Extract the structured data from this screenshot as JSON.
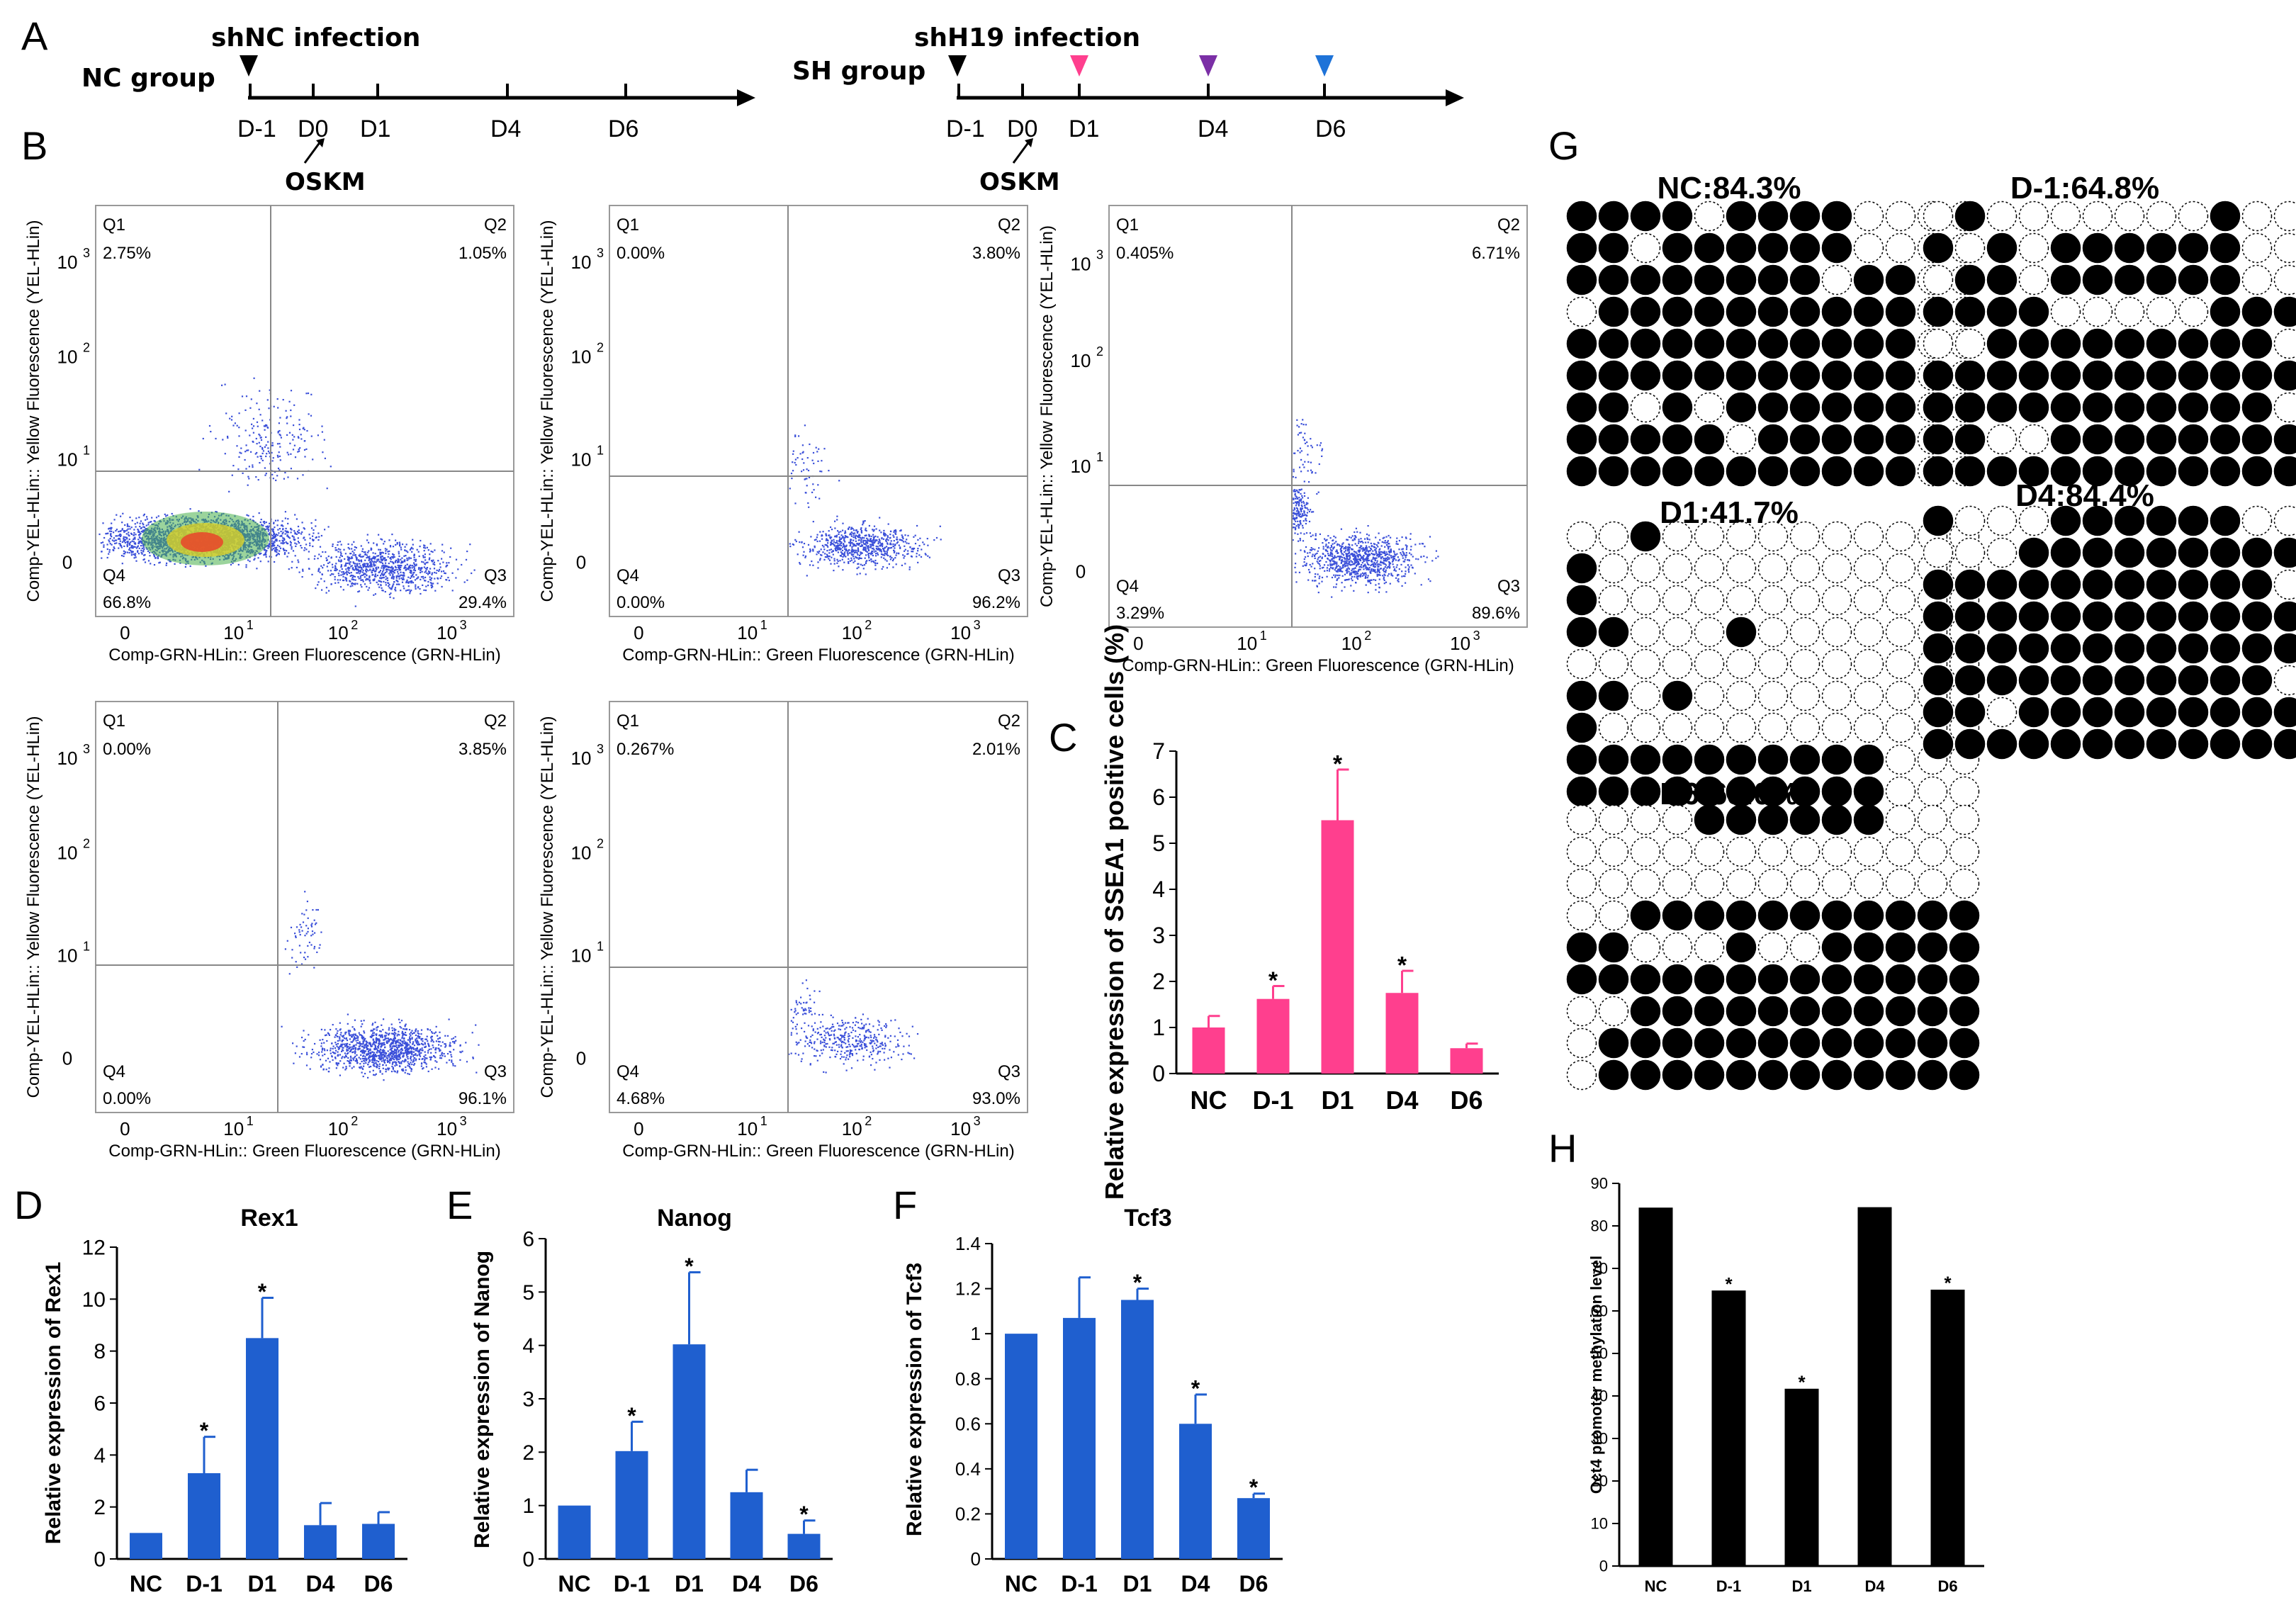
{
  "panels": {
    "A": "A",
    "B": "B",
    "C": "C",
    "D": "D",
    "E": "E",
    "F": "F",
    "G": "G",
    "H": "H"
  },
  "timeline": {
    "nc": {
      "group": "NC group",
      "infection": "shNC infection",
      "ticks": [
        "D-1",
        "D0",
        "D1",
        "D4",
        "D6"
      ],
      "oskm": "OSKM"
    },
    "sh": {
      "group": "SH group",
      "infection": "shH19 infection",
      "ticks": [
        "D-1",
        "D0",
        "D1",
        "D4",
        "D6"
      ],
      "oskm": "OSKM",
      "markers": [
        {
          "day": "D1",
          "color": "#ff3f8e"
        },
        {
          "day": "D4",
          "color": "#7b2fa6"
        },
        {
          "day": "D6",
          "color": "#1e73d8"
        }
      ]
    }
  },
  "flow": {
    "xlabel": "Comp-GRN-HLin:: Green Fluorescence (GRN-HLin)",
    "ylabel": "Comp-YEL-HLin:: Yellow Fluorescence (YEL-HLin)",
    "xticks": [
      "0",
      "10",
      "10",
      "10"
    ],
    "xexp": [
      "",
      "1",
      "2",
      "3"
    ],
    "yticks": [
      "0",
      "10",
      "10",
      "10"
    ],
    "yexp": [
      "",
      "1",
      "2",
      "3"
    ],
    "plots": [
      {
        "q1": "Q1",
        "q2": "Q2",
        "q3": "Q3",
        "q4": "Q4",
        "v1": "2.75%",
        "v2": "1.05%",
        "v3": "29.4%",
        "v4": "66.8%"
      },
      {
        "q1": "Q1",
        "q2": "Q2",
        "q3": "Q3",
        "q4": "Q4",
        "v1": "0.00%",
        "v2": "3.80%",
        "v3": "96.2%",
        "v4": "0.00%"
      },
      {
        "q1": "Q1",
        "q2": "Q2",
        "q3": "Q3",
        "q4": "Q4",
        "v1": "0.405%",
        "v2": "6.71%",
        "v3": "89.6%",
        "v4": "3.29%"
      },
      {
        "q1": "Q1",
        "q2": "Q2",
        "q3": "Q3",
        "q4": "Q4",
        "v1": "0.00%",
        "v2": "3.85%",
        "v3": "96.1%",
        "v4": "0.00%"
      },
      {
        "q1": "Q1",
        "q2": "Q2",
        "q3": "Q3",
        "q4": "Q4",
        "v1": "0.267%",
        "v2": "2.01%",
        "v3": "93.0%",
        "v4": "4.68%"
      }
    ]
  },
  "colors": {
    "pink": "#ff3f8e",
    "blue": "#1f5fcf",
    "black": "#000000",
    "dot": "#3a4fd9"
  },
  "methylation": {
    "panels": [
      {
        "title": "NC:84.3%",
        "pattern": [
          "1111011110000",
          "1101111110000",
          "1111111101100",
          "0111111111100",
          "1111111111100",
          "1111111111100",
          "1101011111100",
          "1111101111100",
          "1111111111100"
        ]
      },
      {
        "title": "D-1:64.8%",
        "pattern": [
          "0100000001000",
          "1010111111000",
          "0110111111000",
          "1111000001110",
          "0011111111100",
          "1111111111111",
          "1111111111100",
          "1100111111111",
          "1111111111111"
        ]
      },
      {
        "title": "D1:41.7%",
        "pattern": [
          "0010000000000",
          "1000000000000",
          "1000000000000",
          "1100010000000",
          "0000000000000",
          "1101000000000",
          "1000000000000",
          "1111111111000",
          "1111111111000"
        ]
      },
      {
        "title": "D4:84.4%",
        "pattern": [
          "1000111111000",
          "0001111111110",
          "1111111111101",
          "1111111111111",
          "1111111111111",
          "1111111111101",
          "1101111111111",
          "1111111111111"
        ]
      },
      {
        "title": "D6:65.0%",
        "pattern": [
          "0000111111000",
          "0000000000000",
          "0000000000000",
          "0011111111111",
          "1100010011111",
          "1111111111111",
          "0011111111111",
          "0111111111111",
          "0111111111111"
        ]
      }
    ]
  },
  "chart_data": [
    {
      "panel": "C",
      "type": "bar",
      "categories": [
        "NC",
        "D-1",
        "D1",
        "D4",
        "D6"
      ],
      "values": [
        1.0,
        1.62,
        5.5,
        1.75,
        0.55
      ],
      "errors": [
        0.25,
        0.28,
        1.1,
        0.48,
        0.1
      ],
      "significant": [
        false,
        true,
        true,
        true,
        false
      ],
      "ylabel": "Relative expression of SSEA1 positive cells (%)",
      "ylim": [
        0,
        7
      ],
      "yticks": [
        0,
        1,
        2,
        3,
        4,
        5,
        6,
        7
      ],
      "color": "#ff3f8e"
    },
    {
      "panel": "D",
      "type": "bar",
      "title": "Rex1",
      "categories": [
        "NC",
        "D-1",
        "D1",
        "D4",
        "D6"
      ],
      "values": [
        1.0,
        3.3,
        8.5,
        1.3,
        1.35
      ],
      "errors": [
        0,
        1.4,
        1.55,
        0.85,
        0.45
      ],
      "significant": [
        false,
        true,
        true,
        false,
        false
      ],
      "ylabel": "Relative expression of Rex1",
      "ylim": [
        0,
        12
      ],
      "yticks": [
        0,
        2,
        4,
        6,
        8,
        10,
        12
      ],
      "color": "#1f5fcf"
    },
    {
      "panel": "E",
      "type": "bar",
      "title": "Nanog",
      "categories": [
        "NC",
        "D-1",
        "D1",
        "D4",
        "D6"
      ],
      "values": [
        1.0,
        2.02,
        4.02,
        1.25,
        0.47
      ],
      "errors": [
        0,
        0.55,
        1.35,
        0.42,
        0.25
      ],
      "significant": [
        false,
        true,
        true,
        false,
        true
      ],
      "ylabel": "Relative expression of Nanog",
      "ylim": [
        0,
        6
      ],
      "yticks": [
        0,
        1,
        2,
        3,
        4,
        5,
        6
      ],
      "color": "#1f5fcf"
    },
    {
      "panel": "F",
      "type": "bar",
      "title": "Tcf3",
      "categories": [
        "NC",
        "D-1",
        "D1",
        "D4",
        "D6"
      ],
      "values": [
        1.0,
        1.07,
        1.15,
        0.6,
        0.27
      ],
      "errors": [
        0,
        0.18,
        0.05,
        0.13,
        0.02
      ],
      "significant": [
        false,
        false,
        true,
        true,
        true
      ],
      "ylabel": "Relative expression of Tcf3",
      "ylim": [
        0,
        1.4
      ],
      "yticks": [
        "0",
        "0.2",
        "0.4",
        "0.6",
        "0.8",
        "1",
        "1.2",
        "1.4"
      ],
      "color": "#1f5fcf"
    },
    {
      "panel": "H",
      "type": "bar",
      "categories": [
        "NC",
        "D-1",
        "D1",
        "D4",
        "D6"
      ],
      "values": [
        84.3,
        64.8,
        41.7,
        84.4,
        65.0
      ],
      "significant": [
        false,
        true,
        true,
        false,
        true
      ],
      "ylabel": "Oct4 promoter methylation level",
      "ylim": [
        0,
        90
      ],
      "yticks": [
        0,
        10,
        20,
        30,
        40,
        50,
        60,
        70,
        80,
        90
      ],
      "color": "#000000"
    }
  ]
}
